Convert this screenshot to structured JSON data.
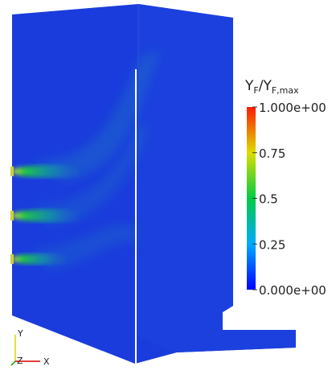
{
  "colorbar": {
    "title": {
      "base": "Y",
      "sub": "F",
      "base2": "/Y",
      "sub2": "F,max"
    },
    "labels": [
      "1.000e+00",
      "0.75",
      "0.5",
      "0.25",
      "0.000e+00"
    ]
  },
  "axes": {
    "y": "Y",
    "z": "Z",
    "x": "X"
  }
}
